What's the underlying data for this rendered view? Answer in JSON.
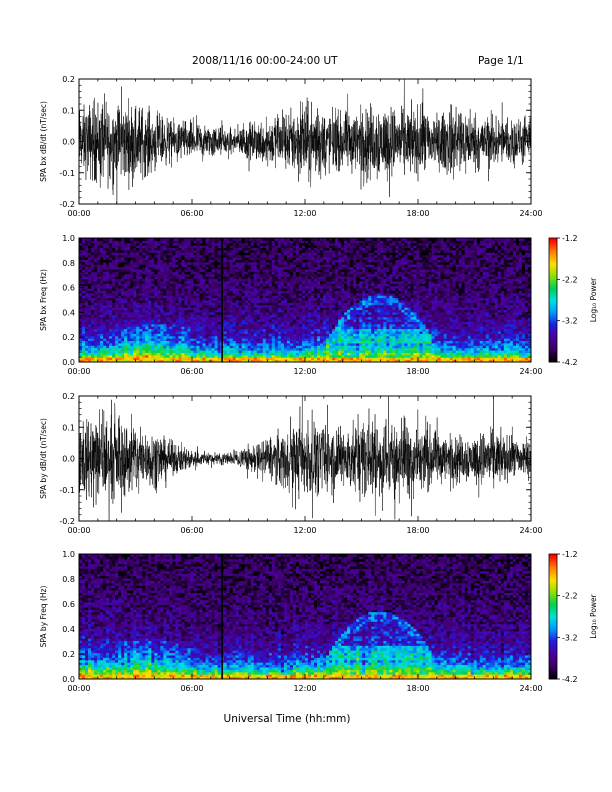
{
  "header": {
    "date_range": "2008/11/16  00:00-24:00 UT",
    "page": "Page 1/1"
  },
  "xaxis": {
    "title": "Universal Time (hh:mm)",
    "range_hours": [
      0,
      24
    ],
    "tick_hours": [
      0,
      6,
      12,
      18,
      24
    ],
    "tick_labels": [
      "00:00",
      "06:00",
      "12:00",
      "18:00",
      "24:00"
    ]
  },
  "colorbar": {
    "label": "Log₁₀ Power",
    "range": [
      -4.2,
      -1.2
    ],
    "tick_values": [
      -1.2,
      -2.2,
      -3.2,
      -4.2
    ],
    "tick_labels": [
      "-1.2",
      "-2.2",
      "-3.2",
      "-4.2"
    ],
    "colormap": [
      "#000000",
      "#3a0060",
      "#4a00a0",
      "#1e1edc",
      "#0096ff",
      "#00e0e0",
      "#00d050",
      "#90e000",
      "#ffe000",
      "#ff8000",
      "#ff0000"
    ]
  },
  "chart_data": [
    {
      "type": "line",
      "ylabel": "SPA bx dB/dt (nT/sec)",
      "ylim": [
        -0.2,
        0.2
      ],
      "y_ticks": [
        -0.2,
        -0.1,
        0.0,
        0.1,
        0.2
      ],
      "y_tick_labels": [
        "-0.2",
        "-0.1",
        "0.0",
        "0.1",
        "0.2"
      ],
      "color": "#000000",
      "envelope": {
        "hours": [
          0,
          1,
          2,
          3,
          4,
          5,
          6,
          7,
          8,
          9,
          10,
          11,
          12,
          13,
          14,
          15,
          16,
          17,
          18,
          19,
          20,
          21,
          22,
          23,
          24
        ],
        "amplitude": [
          0.16,
          0.22,
          0.2,
          0.2,
          0.15,
          0.1,
          0.09,
          0.08,
          0.06,
          0.09,
          0.12,
          0.15,
          0.2,
          0.16,
          0.14,
          0.18,
          0.2,
          0.16,
          0.18,
          0.13,
          0.2,
          0.13,
          0.12,
          0.12,
          0.1
        ]
      }
    },
    {
      "type": "heatmap",
      "ylabel": "SPA bx Freq (Hz)",
      "ylim": [
        0.0,
        1.0
      ],
      "y_ticks": [
        0.0,
        0.2,
        0.4,
        0.6,
        0.8,
        1.0
      ],
      "y_tick_labels": [
        "0.0",
        "0.2",
        "0.4",
        "0.6",
        "0.8",
        "1.0"
      ],
      "zlim": [
        -4.2,
        -1.2
      ],
      "data_gap_hour": 7.6
    },
    {
      "type": "line",
      "ylabel": "SPA by dB/dt (nT/sec)",
      "ylim": [
        -0.2,
        0.2
      ],
      "y_ticks": [
        -0.2,
        -0.1,
        0.0,
        0.1,
        0.2
      ],
      "y_tick_labels": [
        "-0.2",
        "-0.1",
        "0.0",
        "0.1",
        "0.2"
      ],
      "color": "#000000",
      "envelope": {
        "hours": [
          0,
          1,
          2,
          3,
          4,
          5,
          6,
          7,
          8,
          9,
          10,
          11,
          12,
          13,
          14,
          15,
          16,
          17,
          18,
          19,
          20,
          21,
          22,
          23,
          24
        ],
        "amplitude": [
          0.18,
          0.22,
          0.2,
          0.18,
          0.14,
          0.08,
          0.05,
          0.03,
          0.03,
          0.06,
          0.1,
          0.15,
          0.2,
          0.17,
          0.15,
          0.2,
          0.2,
          0.18,
          0.2,
          0.13,
          0.12,
          0.12,
          0.15,
          0.1,
          0.1
        ]
      }
    },
    {
      "type": "heatmap",
      "ylabel": "SPA by Freq (Hz)",
      "ylim": [
        0.0,
        1.0
      ],
      "y_ticks": [
        0.0,
        0.2,
        0.4,
        0.6,
        0.8,
        1.0
      ],
      "y_tick_labels": [
        "0.0",
        "0.2",
        "0.4",
        "0.6",
        "0.8",
        "1.0"
      ],
      "zlim": [
        -4.2,
        -1.2
      ],
      "data_gap_hour": 7.6
    }
  ]
}
